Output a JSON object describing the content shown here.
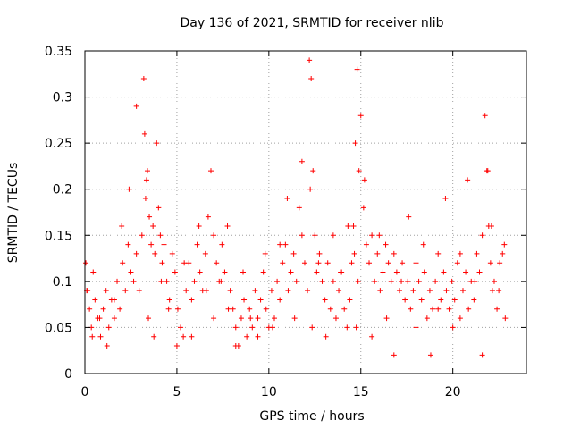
{
  "chart_data": {
    "type": "scatter",
    "title": "Day 136 of 2021, SRMTID for receiver nlib",
    "xlabel": "GPS time / hours",
    "ylabel": "SRMTID / TECUs",
    "xlim": [
      0,
      24
    ],
    "ylim": [
      0,
      0.35
    ],
    "x_ticks": [
      0,
      5,
      10,
      15,
      20
    ],
    "x_tick_labels": [
      "0",
      "5",
      "10",
      "15",
      "20"
    ],
    "y_ticks": [
      0,
      0.05,
      0.1,
      0.15,
      0.2,
      0.25,
      0.3,
      0.35
    ],
    "y_tick_labels": [
      "0",
      "0.05",
      "0.1",
      "0.15",
      "0.2",
      "0.25",
      "0.3",
      "0.35"
    ],
    "grid": true,
    "marker": "+",
    "series": [
      {
        "name": "SRMTID",
        "color": "#ff0000",
        "x": [
          0.05,
          0.15,
          0.25,
          0.35,
          0.45,
          0.55,
          0.7,
          0.85,
          1.0,
          1.15,
          1.3,
          1.45,
          1.6,
          1.75,
          1.9,
          2.05,
          2.2,
          2.35,
          2.5,
          2.65,
          2.8,
          2.95,
          3.1,
          3.2,
          3.25,
          3.3,
          3.4,
          3.5,
          3.6,
          3.7,
          3.8,
          3.9,
          4.0,
          4.1,
          4.2,
          4.3,
          4.45,
          4.6,
          4.75,
          4.9,
          5.05,
          5.2,
          5.35,
          5.5,
          5.65,
          5.8,
          5.95,
          6.1,
          6.25,
          6.4,
          6.55,
          6.7,
          6.85,
          7.0,
          7.15,
          7.3,
          7.45,
          7.6,
          7.75,
          7.9,
          8.05,
          8.2,
          8.35,
          8.5,
          8.65,
          8.8,
          8.95,
          9.1,
          9.25,
          9.4,
          9.55,
          9.7,
          9.85,
          10.0,
          10.15,
          10.3,
          10.45,
          10.6,
          10.75,
          10.9,
          11.05,
          11.2,
          11.35,
          11.5,
          11.65,
          11.8,
          11.95,
          12.1,
          12.2,
          12.3,
          12.4,
          12.5,
          12.6,
          12.75,
          12.9,
          13.05,
          13.2,
          13.35,
          13.5,
          13.65,
          13.8,
          13.95,
          14.1,
          14.25,
          14.4,
          14.5,
          14.6,
          14.7,
          14.8,
          14.9,
          15.0,
          15.15,
          15.3,
          15.45,
          15.6,
          15.75,
          15.9,
          16.05,
          16.2,
          16.35,
          16.5,
          16.65,
          16.8,
          16.95,
          17.1,
          17.25,
          17.4,
          17.55,
          17.7,
          17.85,
          18.0,
          18.15,
          18.3,
          18.45,
          18.6,
          18.75,
          18.9,
          19.05,
          19.2,
          19.35,
          19.5,
          19.65,
          19.8,
          19.95,
          20.1,
          20.25,
          20.4,
          20.55,
          20.7,
          20.85,
          21.0,
          21.15,
          21.3,
          21.45,
          21.6,
          21.75,
          21.85,
          21.95,
          22.05,
          22.15,
          22.25,
          22.4,
          22.55,
          22.7,
          22.85,
          0.1,
          0.4,
          0.8,
          1.2,
          1.6,
          2.0,
          2.4,
          2.8,
          3.35,
          3.45,
          3.75,
          4.15,
          4.55,
          5.0,
          5.4,
          5.8,
          6.2,
          6.6,
          7.0,
          7.4,
          7.8,
          8.2,
          8.6,
          9.0,
          9.4,
          9.8,
          10.2,
          10.6,
          11.0,
          11.4,
          11.8,
          12.25,
          12.35,
          12.7,
          13.1,
          13.5,
          13.9,
          14.3,
          14.65,
          14.75,
          14.85,
          15.2,
          15.6,
          16.0,
          16.4,
          16.8,
          17.2,
          17.6,
          18.0,
          18.4,
          18.8,
          19.2,
          19.6,
          20.0,
          20.4,
          20.8,
          21.2,
          21.6,
          21.9,
          22.1,
          22.5,
          22.8
        ],
        "y": [
          0.12,
          0.09,
          0.07,
          0.05,
          0.11,
          0.08,
          0.06,
          0.04,
          0.07,
          0.09,
          0.05,
          0.08,
          0.06,
          0.1,
          0.07,
          0.12,
          0.09,
          0.14,
          0.11,
          0.1,
          0.13,
          0.09,
          0.15,
          0.32,
          0.26,
          0.19,
          0.22,
          0.17,
          0.14,
          0.16,
          0.13,
          0.25,
          0.18,
          0.15,
          0.12,
          0.14,
          0.1,
          0.08,
          0.13,
          0.11,
          0.07,
          0.05,
          0.04,
          0.09,
          0.12,
          0.08,
          0.1,
          0.14,
          0.11,
          0.09,
          0.13,
          0.17,
          0.22,
          0.15,
          0.12,
          0.1,
          0.14,
          0.11,
          0.16,
          0.09,
          0.07,
          0.05,
          0.03,
          0.06,
          0.08,
          0.04,
          0.07,
          0.05,
          0.09,
          0.06,
          0.08,
          0.11,
          0.07,
          0.05,
          0.09,
          0.06,
          0.1,
          0.08,
          0.12,
          0.14,
          0.09,
          0.11,
          0.13,
          0.1,
          0.18,
          0.15,
          0.12,
          0.09,
          0.34,
          0.32,
          0.22,
          0.15,
          0.11,
          0.13,
          0.1,
          0.08,
          0.12,
          0.07,
          0.1,
          0.06,
          0.09,
          0.11,
          0.07,
          0.05,
          0.08,
          0.12,
          0.16,
          0.25,
          0.33,
          0.22,
          0.28,
          0.18,
          0.14,
          0.12,
          0.15,
          0.1,
          0.13,
          0.09,
          0.11,
          0.14,
          0.12,
          0.1,
          0.13,
          0.11,
          0.09,
          0.12,
          0.08,
          0.1,
          0.07,
          0.09,
          0.12,
          0.1,
          0.08,
          0.11,
          0.06,
          0.09,
          0.07,
          0.1,
          0.13,
          0.08,
          0.11,
          0.09,
          0.07,
          0.1,
          0.08,
          0.12,
          0.06,
          0.09,
          0.11,
          0.07,
          0.1,
          0.08,
          0.13,
          0.11,
          0.15,
          0.28,
          0.22,
          0.16,
          0.12,
          0.09,
          0.1,
          0.07,
          0.12,
          0.13,
          0.06,
          0.09,
          0.04,
          0.06,
          0.03,
          0.08,
          0.16,
          0.2,
          0.29,
          0.21,
          0.06,
          0.04,
          0.1,
          0.07,
          0.03,
          0.12,
          0.04,
          0.16,
          0.09,
          0.06,
          0.1,
          0.07,
          0.03,
          0.11,
          0.06,
          0.04,
          0.13,
          0.05,
          0.14,
          0.19,
          0.06,
          0.23,
          0.2,
          0.05,
          0.12,
          0.04,
          0.15,
          0.11,
          0.16,
          0.13,
          0.05,
          0.1,
          0.21,
          0.04,
          0.15,
          0.06,
          0.02,
          0.1,
          0.17,
          0.05,
          0.14,
          0.02,
          0.07,
          0.19,
          0.05,
          0.13,
          0.21,
          0.1,
          0.02,
          0.22,
          0.16,
          0.09,
          0.14
        ]
      }
    ]
  }
}
